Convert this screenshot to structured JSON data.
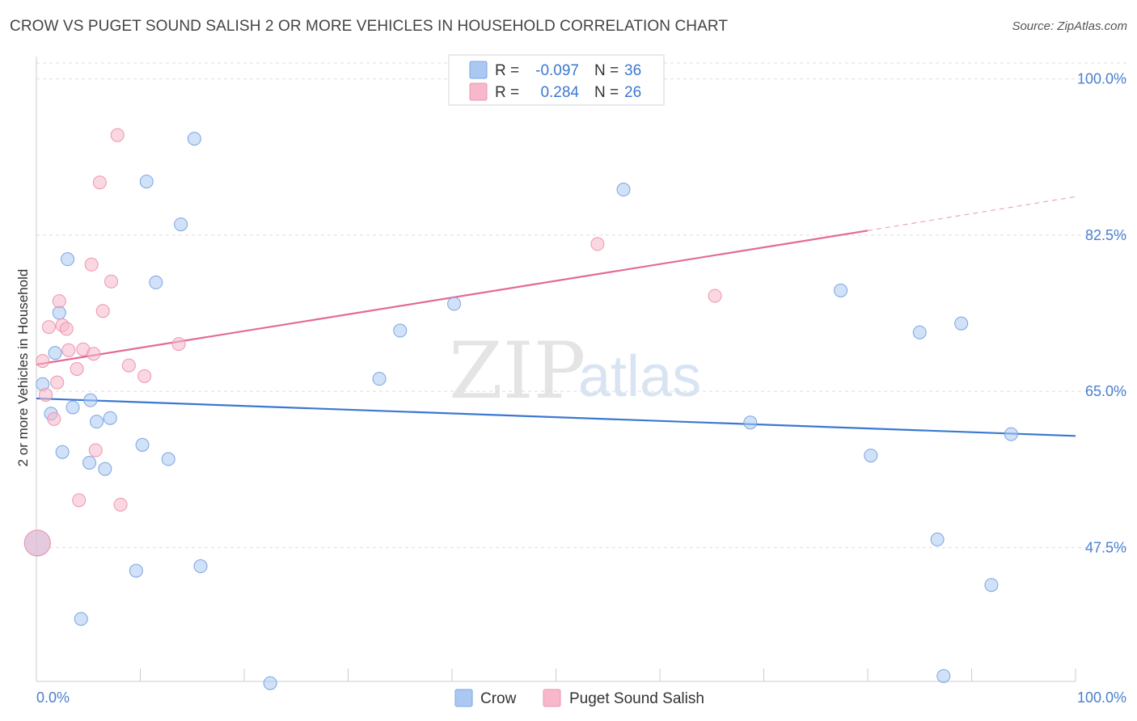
{
  "header": {
    "title": "CROW VS PUGET SOUND SALISH 2 OR MORE VEHICLES IN HOUSEHOLD CORRELATION CHART",
    "source": "Source: ZipAtlas.com"
  },
  "watermark": {
    "zip": "ZIP",
    "atlas": "atlas"
  },
  "legend_box": {
    "rows": [
      {
        "r_label": "R =",
        "r_value": "-0.097",
        "n_label": "N =",
        "n_value": "36",
        "color": "#aac8f2"
      },
      {
        "r_label": "R =",
        "r_value": "0.284",
        "n_label": "N =",
        "n_value": "26",
        "color": "#f6b8ca"
      }
    ]
  },
  "bottom_legend": [
    {
      "label": "Crow",
      "color": "#aac8f2"
    },
    {
      "label": "Puget Sound Salish",
      "color": "#f6b8ca"
    }
  ],
  "chart_data": {
    "type": "scatter",
    "title": "CROW VS PUGET SOUND SALISH 2 OR MORE VEHICLES IN HOUSEHOLD CORRELATION CHART",
    "xlabel": "",
    "ylabel": "2 or more Vehicles in Household",
    "xlim": [
      0,
      100
    ],
    "ylim": [
      32.5,
      102.5
    ],
    "x_tick_labels": [
      "0.0%",
      "100.0%"
    ],
    "y_ticks": [
      47.5,
      65.0,
      82.5,
      100.0
    ],
    "y_tick_labels": [
      "47.5%",
      "65.0%",
      "82.5%",
      "100.0%"
    ],
    "grid": true,
    "series": [
      {
        "name": "Crow",
        "color": "#aac8f2",
        "edge": "#7aa6e0",
        "trend_color": "#3b78d0",
        "trend": {
          "x0": 0,
          "y0": 64.2,
          "x1": 100,
          "y1": 60.0
        },
        "points": [
          {
            "x": 0.1,
            "y": 48.0,
            "big": true
          },
          {
            "x": 0.6,
            "y": 65.8
          },
          {
            "x": 1.4,
            "y": 62.5
          },
          {
            "x": 1.8,
            "y": 69.3
          },
          {
            "x": 2.2,
            "y": 73.8
          },
          {
            "x": 2.5,
            "y": 58.2
          },
          {
            "x": 3.0,
            "y": 79.8
          },
          {
            "x": 3.5,
            "y": 63.2
          },
          {
            "x": 4.3,
            "y": 39.5
          },
          {
            "x": 5.1,
            "y": 57.0
          },
          {
            "x": 5.2,
            "y": 64.0
          },
          {
            "x": 5.8,
            "y": 61.6
          },
          {
            "x": 6.6,
            "y": 56.3
          },
          {
            "x": 7.1,
            "y": 62.0
          },
          {
            "x": 9.6,
            "y": 44.9
          },
          {
            "x": 10.2,
            "y": 59.0
          },
          {
            "x": 10.6,
            "y": 88.5
          },
          {
            "x": 11.5,
            "y": 77.2
          },
          {
            "x": 12.7,
            "y": 57.4
          },
          {
            "x": 13.9,
            "y": 83.7
          },
          {
            "x": 15.2,
            "y": 93.3
          },
          {
            "x": 15.8,
            "y": 45.4
          },
          {
            "x": 22.5,
            "y": 32.3
          },
          {
            "x": 33.0,
            "y": 66.4
          },
          {
            "x": 35.0,
            "y": 71.8
          },
          {
            "x": 40.2,
            "y": 74.8
          },
          {
            "x": 56.5,
            "y": 87.6
          },
          {
            "x": 68.7,
            "y": 61.5
          },
          {
            "x": 77.4,
            "y": 76.3
          },
          {
            "x": 80.3,
            "y": 57.8
          },
          {
            "x": 85.0,
            "y": 71.6
          },
          {
            "x": 86.7,
            "y": 48.4
          },
          {
            "x": 87.3,
            "y": 33.1
          },
          {
            "x": 89.0,
            "y": 72.6
          },
          {
            "x": 91.9,
            "y": 43.3
          },
          {
            "x": 93.8,
            "y": 60.2
          }
        ]
      },
      {
        "name": "Puget Sound Salish",
        "color": "#f6b8ca",
        "edge": "#ee94ae",
        "trend_color": "#e36a94",
        "trend": {
          "x0": 0,
          "y0": 68.0,
          "x1": 80.0,
          "y1": 83.0
        },
        "trend_dashed": {
          "x0": 80.0,
          "y0": 83.0,
          "x1": 100,
          "y1": 86.8
        },
        "points": [
          {
            "x": 0.1,
            "y": 48.0,
            "big": true
          },
          {
            "x": 0.6,
            "y": 68.4
          },
          {
            "x": 0.9,
            "y": 64.6
          },
          {
            "x": 1.2,
            "y": 72.2
          },
          {
            "x": 1.7,
            "y": 61.9
          },
          {
            "x": 2.0,
            "y": 66.0
          },
          {
            "x": 2.2,
            "y": 75.1
          },
          {
            "x": 2.5,
            "y": 72.4
          },
          {
            "x": 2.9,
            "y": 72.0
          },
          {
            "x": 3.1,
            "y": 69.6
          },
          {
            "x": 3.9,
            "y": 67.5
          },
          {
            "x": 4.1,
            "y": 52.8
          },
          {
            "x": 4.5,
            "y": 69.7
          },
          {
            "x": 5.3,
            "y": 79.2
          },
          {
            "x": 5.5,
            "y": 69.2
          },
          {
            "x": 5.7,
            "y": 58.4
          },
          {
            "x": 6.1,
            "y": 88.4
          },
          {
            "x": 6.4,
            "y": 74.0
          },
          {
            "x": 7.2,
            "y": 77.3
          },
          {
            "x": 7.8,
            "y": 93.7
          },
          {
            "x": 8.1,
            "y": 52.3
          },
          {
            "x": 8.9,
            "y": 67.9
          },
          {
            "x": 10.4,
            "y": 66.7
          },
          {
            "x": 13.7,
            "y": 70.3
          },
          {
            "x": 54.0,
            "y": 81.5
          },
          {
            "x": 65.3,
            "y": 75.7
          }
        ]
      }
    ]
  }
}
